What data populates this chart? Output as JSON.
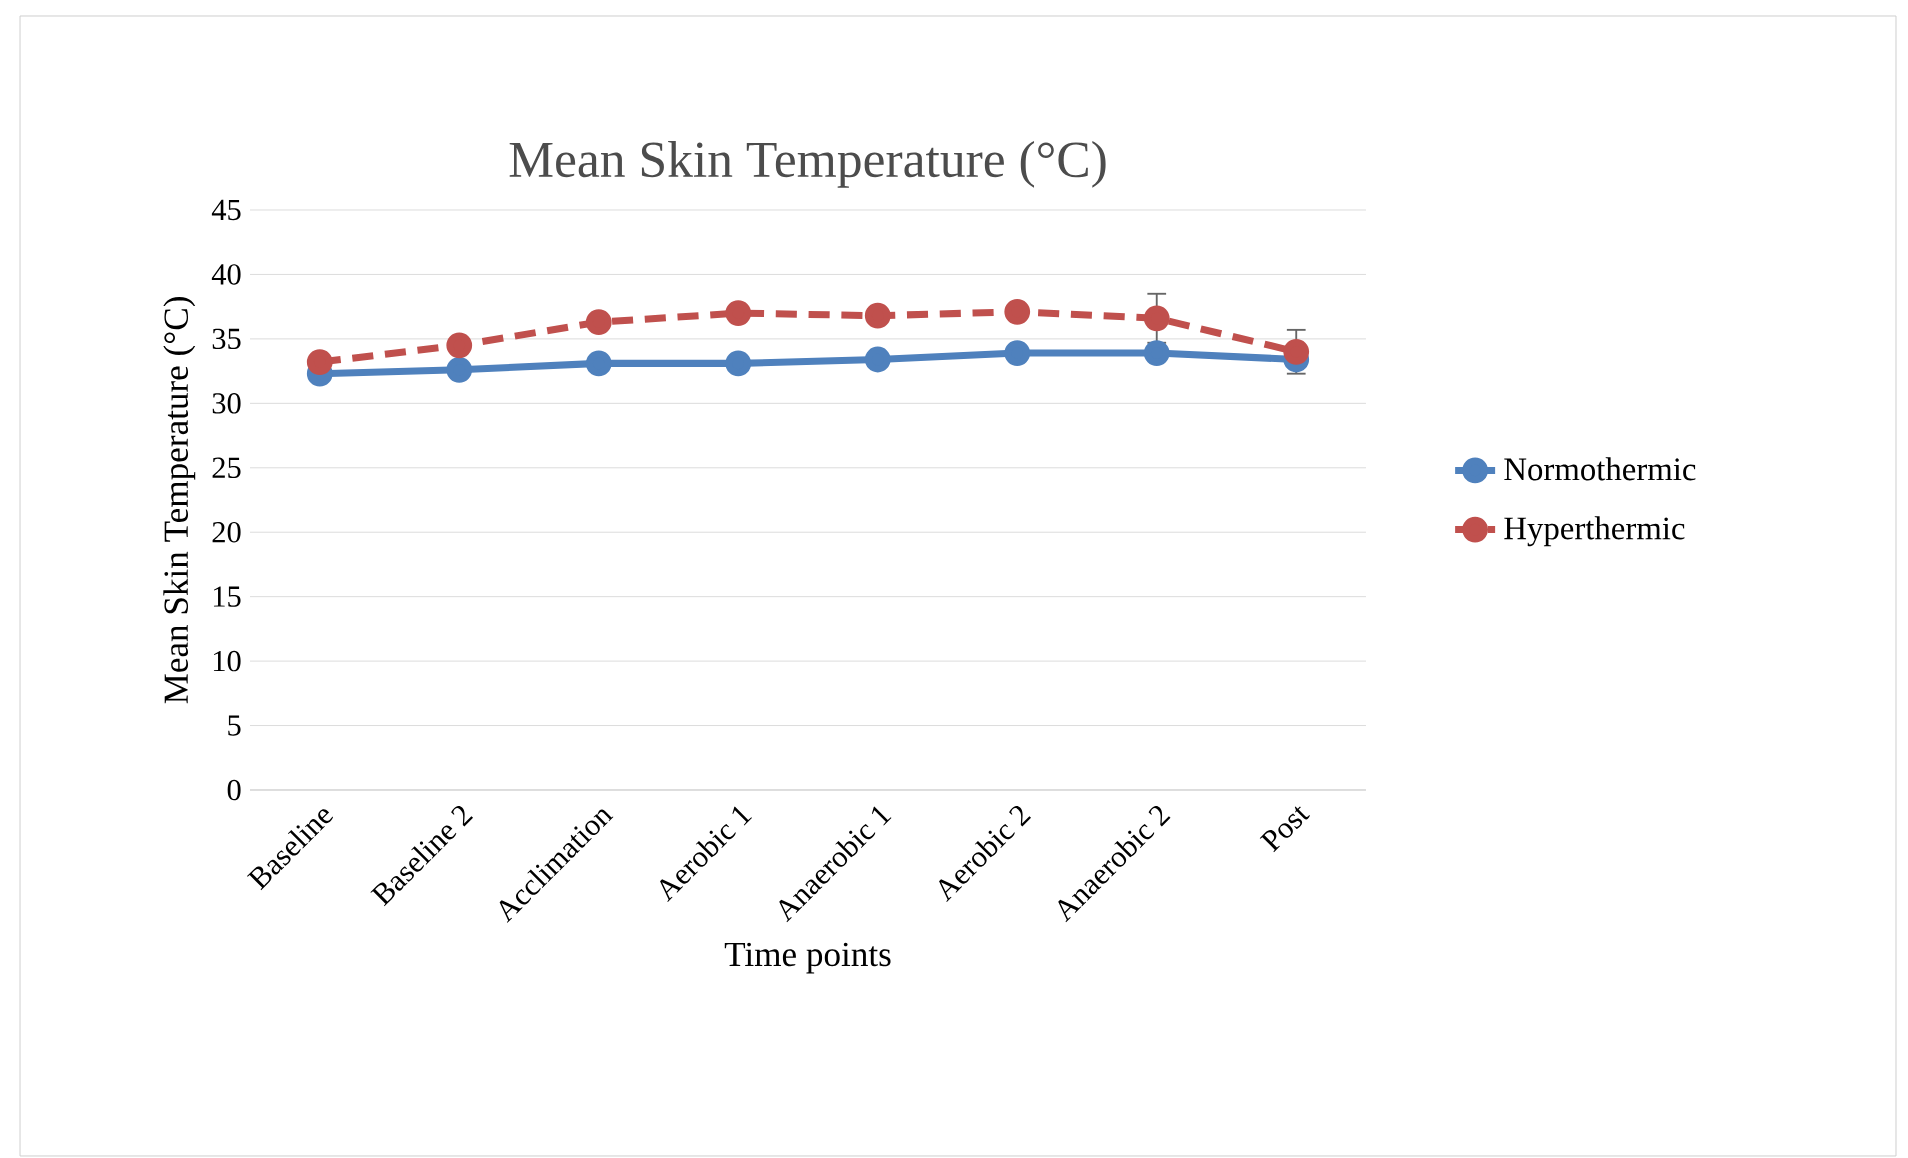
{
  "chart_data": {
    "type": "line",
    "title": "Mean Skin Temperature (°C)",
    "xlabel": "Time points",
    "ylabel": "Mean Skin Temperature (°C)",
    "categories": [
      "Baseline",
      "Baseline 2",
      "Acclimation",
      "Aerobic 1",
      "Anaerobic 1",
      "Aerobic 2",
      "Anaerobic 2",
      "Post"
    ],
    "series": [
      {
        "name": "Normothermic",
        "color": "#4f81bd",
        "line_style": "solid",
        "values": [
          32.3,
          32.6,
          33.1,
          33.1,
          33.4,
          33.9,
          33.9,
          33.4
        ]
      },
      {
        "name": "Hyperthermic",
        "color": "#c0504d",
        "line_style": "dashed",
        "values": [
          33.2,
          34.5,
          36.3,
          37.0,
          36.8,
          37.1,
          36.6,
          34.0
        ],
        "errors": [
          null,
          null,
          null,
          null,
          null,
          null,
          1.9,
          1.7
        ]
      }
    ],
    "ylim": [
      0,
      45
    ],
    "yticks": [
      0,
      5,
      10,
      15,
      20,
      25,
      30,
      35,
      40,
      45
    ],
    "grid": "y",
    "legend": "right",
    "marker": "circle"
  }
}
